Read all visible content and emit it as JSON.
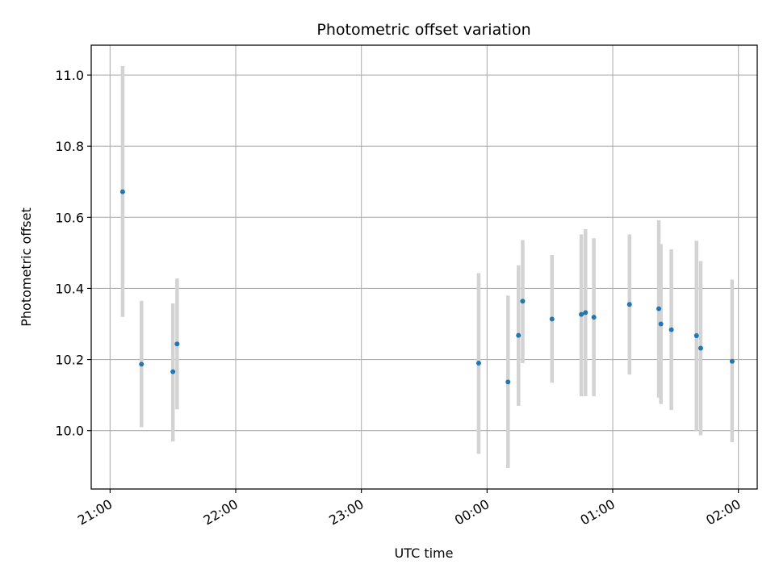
{
  "chart_data": {
    "type": "scatter",
    "title": "Photometric offset variation",
    "xlabel": "UTC time",
    "ylabel": "Photometric offset",
    "grid": true,
    "legend": "none",
    "x_axis_type": "time",
    "xlim": [
      "20:51",
      "02:09"
    ],
    "ylim": [
      9.836,
      11.084
    ],
    "x_ticks": [
      "21:00",
      "22:00",
      "23:00",
      "00:00",
      "01:00",
      "02:00"
    ],
    "y_ticks": [
      10.0,
      10.2,
      10.4,
      10.6,
      10.8,
      11.0
    ],
    "colors": {
      "point": "#1f77b4",
      "errorbar": "#d3d3d3",
      "grid": "#b0b0b0"
    },
    "series": [
      {
        "points": [
          {
            "x": "21:06",
            "y": 10.672,
            "ylow": 10.32,
            "yhigh": 11.025
          },
          {
            "x": "21:15",
            "y": 10.187,
            "ylow": 10.01,
            "yhigh": 10.365
          },
          {
            "x": "21:30",
            "y": 10.166,
            "ylow": 9.97,
            "yhigh": 10.358
          },
          {
            "x": "21:32",
            "y": 10.244,
            "ylow": 10.06,
            "yhigh": 10.428
          },
          {
            "x": "23:56",
            "y": 10.19,
            "ylow": 9.935,
            "yhigh": 10.443
          },
          {
            "x": "00:10",
            "y": 10.137,
            "ylow": 9.895,
            "yhigh": 10.38
          },
          {
            "x": "00:15",
            "y": 10.268,
            "ylow": 10.07,
            "yhigh": 10.465
          },
          {
            "x": "00:17",
            "y": 10.364,
            "ylow": 10.19,
            "yhigh": 10.536
          },
          {
            "x": "00:31",
            "y": 10.314,
            "ylow": 10.135,
            "yhigh": 10.494
          },
          {
            "x": "00:45",
            "y": 10.327,
            "ylow": 10.097,
            "yhigh": 10.552
          },
          {
            "x": "00:47",
            "y": 10.332,
            "ylow": 10.097,
            "yhigh": 10.567
          },
          {
            "x": "00:51",
            "y": 10.319,
            "ylow": 10.097,
            "yhigh": 10.541
          },
          {
            "x": "01:08",
            "y": 10.355,
            "ylow": 10.158,
            "yhigh": 10.552
          },
          {
            "x": "01:22",
            "y": 10.343,
            "ylow": 10.093,
            "yhigh": 10.592
          },
          {
            "x": "01:23",
            "y": 10.3,
            "ylow": 10.075,
            "yhigh": 10.525
          },
          {
            "x": "01:28",
            "y": 10.284,
            "ylow": 10.058,
            "yhigh": 10.51
          },
          {
            "x": "01:40",
            "y": 10.267,
            "ylow": 10.0,
            "yhigh": 10.534
          },
          {
            "x": "01:42",
            "y": 10.232,
            "ylow": 9.987,
            "yhigh": 10.477
          },
          {
            "x": "01:57",
            "y": 10.195,
            "ylow": 9.968,
            "yhigh": 10.425
          }
        ]
      }
    ]
  }
}
